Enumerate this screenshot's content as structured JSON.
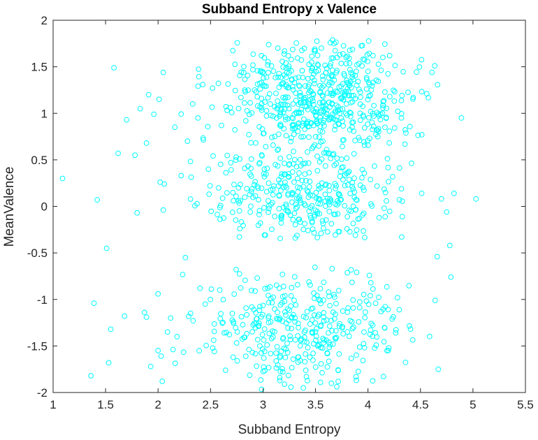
{
  "chart_data": {
    "type": "scatter",
    "title": "Subband Entropy x Valence",
    "xlabel": "Subband Entropy",
    "ylabel": "MeanValence",
    "xlim": [
      1,
      5.5
    ],
    "ylim": [
      -2,
      2
    ],
    "xticks": [
      1,
      1.5,
      2,
      2.5,
      3,
      3.5,
      4,
      4.5,
      5,
      5.5
    ],
    "xtick_labels": [
      "1",
      "1.5",
      "2",
      "2.5",
      "3",
      "3.5",
      "4",
      "4.5",
      "5",
      "5.5"
    ],
    "yticks": [
      -2,
      -1.5,
      -1,
      -0.5,
      0,
      0.5,
      1,
      1.5,
      2
    ],
    "ytick_labels": [
      "-2",
      "-1.5",
      "-1",
      "-0.5",
      "0",
      "0.5",
      "1",
      "1.5",
      "2"
    ],
    "grid": false,
    "marker": "open-circle",
    "marker_color": "#00ffff",
    "series": [
      {
        "x": [
          1.09,
          1.36,
          1.39,
          1.42,
          1.51,
          1.53,
          1.55,
          1.58,
          1.62,
          1.68,
          1.7,
          1.78,
          1.8,
          1.83,
          1.87,
          1.89,
          1.89,
          1.91,
          1.93,
          1.96,
          2.0,
          2.0,
          2.01,
          2.02,
          2.03,
          2.04,
          2.05,
          2.05,
          2.06,
          4.56,
          4.61,
          4.64,
          4.66,
          4.67,
          4.7,
          4.75,
          4.78,
          4.79,
          4.82,
          4.89,
          5.03,
          2.28,
          2.31,
          2.4,
          2.12,
          2.18,
          2.22,
          2.45,
          2.38,
          2.16,
          2.09,
          2.33,
          2.26,
          2.48
        ],
        "y": [
          0.3,
          -1.82,
          -1.04,
          0.07,
          -0.45,
          -1.68,
          -1.32,
          1.49,
          0.57,
          -1.18,
          0.93,
          0.55,
          -0.07,
          1.05,
          -1.14,
          -1.19,
          0.68,
          1.2,
          -1.72,
          0.99,
          -1.55,
          -0.94,
          1.15,
          0.26,
          -1.61,
          -1.88,
          -0.04,
          1.44,
          0.24,
          1.21,
          1.44,
          -1.01,
          -0.54,
          -1.75,
          0.08,
          -0.06,
          -0.42,
          -0.76,
          0.14,
          0.95,
          0.08,
          0.7,
          -1.15,
          -0.88,
          -1.2,
          -1.4,
          0.33,
          -1.05,
          0.95,
          0.85,
          -1.35,
          1.1,
          -0.55,
          0.4
        ]
      }
    ],
    "clusters": [
      {
        "count": 560,
        "x_mean": 3.55,
        "x_sd": 0.45,
        "x_min": 2.15,
        "x_max": 4.7,
        "y_mean": 1.15,
        "y_sd": 0.35,
        "y_min": 0.55,
        "y_max": 1.8
      },
      {
        "count": 330,
        "x_mean": 3.4,
        "x_sd": 0.5,
        "x_min": 2.3,
        "x_max": 4.6,
        "y_mean": 0.12,
        "y_sd": 0.3,
        "y_min": -0.35,
        "y_max": 0.55
      },
      {
        "count": 360,
        "x_mean": 3.35,
        "x_sd": 0.5,
        "x_min": 2.1,
        "x_max": 4.6,
        "y_mean": -1.3,
        "y_sd": 0.32,
        "y_min": -1.97,
        "y_max": -0.62
      }
    ]
  }
}
